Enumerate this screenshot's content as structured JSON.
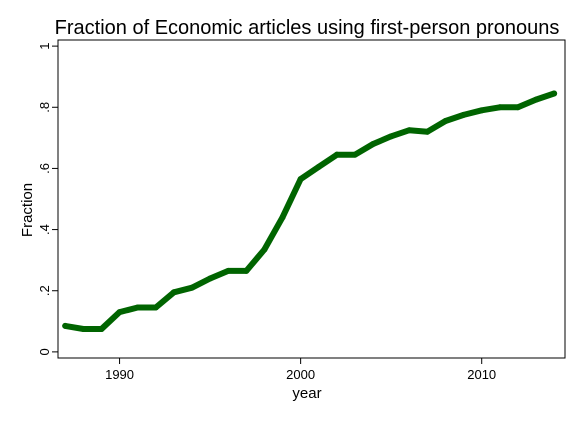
{
  "chart_data": {
    "type": "line",
    "title": "Fraction of Economic articles using first-person pronouns",
    "xlabel": "year",
    "ylabel": "Fraction",
    "xlim": [
      1986.6,
      2014.6
    ],
    "ylim": [
      -0.02,
      1.02
    ],
    "x_ticks": [
      1990,
      2000,
      2010
    ],
    "x_tick_labels": [
      "1990",
      "2000",
      "2010"
    ],
    "y_ticks": [
      0,
      0.2,
      0.4,
      0.6,
      0.8,
      1
    ],
    "y_tick_labels": [
      "0",
      ".2",
      ".4",
      ".6",
      ".8",
      "1"
    ],
    "grid": false,
    "legend": "none",
    "series": [
      {
        "color": "#006400",
        "x": [
          1987,
          1988,
          1989,
          1990,
          1991,
          1992,
          1993,
          1994,
          1995,
          1996,
          1997,
          1998,
          1999,
          2000,
          2001,
          2002,
          2003,
          2004,
          2005,
          2006,
          2007,
          2008,
          2009,
          2010,
          2011,
          2012,
          2013,
          2014
        ],
        "values": [
          0.085,
          0.075,
          0.075,
          0.13,
          0.145,
          0.145,
          0.195,
          0.21,
          0.24,
          0.265,
          0.265,
          0.335,
          0.44,
          0.565,
          0.605,
          0.645,
          0.645,
          0.68,
          0.705,
          0.725,
          0.72,
          0.755,
          0.775,
          0.79,
          0.8,
          0.8,
          0.825,
          0.845
        ]
      }
    ]
  }
}
